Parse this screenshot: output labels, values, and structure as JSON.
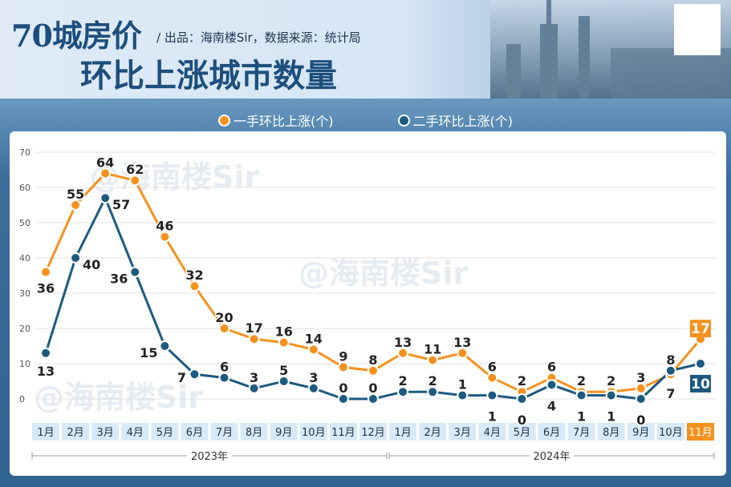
{
  "header": {
    "title_line1": "70城房价",
    "subtitle": "/ 出品：海南楼Sir，数据来源：统计局",
    "title_line2": "环比上涨城市数量"
  },
  "watermark": "@海南楼Sir",
  "colors": {
    "new_home": "#f5921e",
    "second_hand": "#1d5a80",
    "month_bg": "#d8e9f7",
    "highlight": "#f5921e"
  },
  "chart_data": {
    "type": "line",
    "categories": [
      "1月",
      "2月",
      "3月",
      "4月",
      "5月",
      "6月",
      "7月",
      "8月",
      "9月",
      "10月",
      "11月",
      "12月",
      "1月",
      "2月",
      "3月",
      "4月",
      "5月",
      "6月",
      "7月",
      "8月",
      "9月",
      "10月",
      "11月"
    ],
    "year_groups": [
      {
        "label": "2023年",
        "months": 12
      },
      {
        "label": "2024年",
        "months": 11
      }
    ],
    "series": [
      {
        "name": "一手环比上涨(个)",
        "color": "#f5921e",
        "values": [
          36,
          55,
          64,
          62,
          46,
          32,
          20,
          17,
          16,
          14,
          9,
          8,
          13,
          11,
          13,
          6,
          2,
          6,
          2,
          2,
          3,
          7,
          17
        ]
      },
      {
        "name": "二手环比上涨(个)",
        "color": "#1d5a80",
        "values": [
          13,
          40,
          57,
          36,
          15,
          7,
          6,
          3,
          5,
          3,
          0,
          0,
          2,
          2,
          1,
          1,
          0,
          4,
          1,
          1,
          0,
          8,
          10
        ]
      }
    ],
    "ylim": [
      0,
      70
    ],
    "yticks": [
      0,
      10,
      20,
      30,
      40,
      50,
      60,
      70
    ],
    "grid": true,
    "legend": "top-center"
  }
}
